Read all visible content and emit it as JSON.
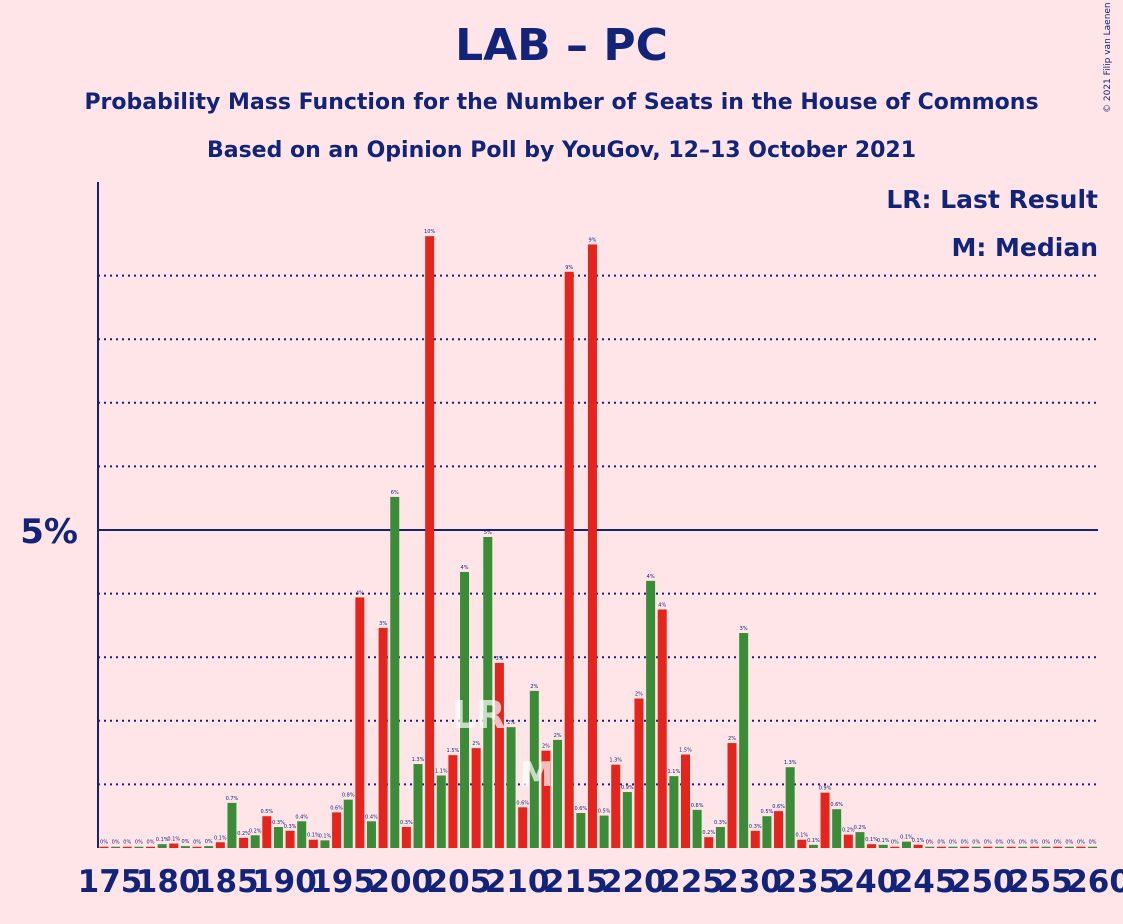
{
  "title": "LAB – PC",
  "subtitle1": "Probability Mass Function for the Number of Seats in the House of Commons",
  "subtitle2": "Based on an Opinion Poll by YouGov, 12–13 October 2021",
  "legend": {
    "last_result": "LR: Last Result",
    "median": "M: Median"
  },
  "copyright": "© 2021 Filip van Laenen",
  "colors": {
    "background": "#FFE4E8",
    "text": "#12247A",
    "red": "#E4251E",
    "green": "#3A8D36"
  },
  "chart_data": {
    "type": "bar",
    "ylabel_major": "5%",
    "ylim": [
      0,
      10.5
    ],
    "grid": "dotted lines every 1%, solid at 5%",
    "last_result_seat": 208,
    "median_seat": 212,
    "x_tick_labels": [
      "175",
      "180",
      "185",
      "190",
      "195",
      "200",
      "205",
      "210",
      "215",
      "220",
      "225",
      "230",
      "235",
      "240",
      "245",
      "250",
      "255",
      "260"
    ],
    "bars": [
      {
        "x": 175,
        "y": 0.02,
        "label": "0%"
      },
      {
        "x": 176,
        "y": 0.02,
        "label": "0%"
      },
      {
        "x": 177,
        "y": 0.02,
        "label": "0%"
      },
      {
        "x": 178,
        "y": 0.02,
        "label": "0%"
      },
      {
        "x": 179,
        "y": 0.02,
        "label": "0%"
      },
      {
        "x": 180,
        "y": 0.06,
        "label": "0.1%"
      },
      {
        "x": 181,
        "y": 0.07,
        "label": "0.1%"
      },
      {
        "x": 182,
        "y": 0.03,
        "label": "0%"
      },
      {
        "x": 183,
        "y": 0.02,
        "label": "0%"
      },
      {
        "x": 184,
        "y": 0.03,
        "label": "0%"
      },
      {
        "x": 185,
        "y": 0.09,
        "label": "0.1%"
      },
      {
        "x": 186,
        "y": 0.71,
        "label": "0.7%"
      },
      {
        "x": 187,
        "y": 0.16,
        "label": "0.2%"
      },
      {
        "x": 188,
        "y": 0.2,
        "label": "0.2%"
      },
      {
        "x": 189,
        "y": 0.5,
        "label": "0.5%"
      },
      {
        "x": 190,
        "y": 0.33,
        "label": "0.3%"
      },
      {
        "x": 191,
        "y": 0.27,
        "label": "0.3%"
      },
      {
        "x": 192,
        "y": 0.42,
        "label": "0.4%"
      },
      {
        "x": 193,
        "y": 0.13,
        "label": "0.1%"
      },
      {
        "x": 194,
        "y": 0.12,
        "label": "0.1%"
      },
      {
        "x": 195,
        "y": 0.56,
        "label": "0.6%"
      },
      {
        "x": 196,
        "y": 0.76,
        "label": "0.8%"
      },
      {
        "x": 197,
        "y": 3.94,
        "label": "4%"
      },
      {
        "x": 198,
        "y": 0.42,
        "label": "0.4%"
      },
      {
        "x": 199,
        "y": 3.46,
        "label": "3%"
      },
      {
        "x": 200,
        "y": 5.52,
        "label": "6%"
      },
      {
        "x": 201,
        "y": 0.33,
        "label": "0.3%"
      },
      {
        "x": 202,
        "y": 1.32,
        "label": "1.3%"
      },
      {
        "x": 203,
        "y": 9.62,
        "label": "10%"
      },
      {
        "x": 204,
        "y": 1.14,
        "label": "1.1%"
      },
      {
        "x": 205,
        "y": 1.46,
        "label": "1.5%"
      },
      {
        "x": 206,
        "y": 4.34,
        "label": "4%"
      },
      {
        "x": 207,
        "y": 1.57,
        "label": "2%"
      },
      {
        "x": 208,
        "y": 4.89,
        "label": "5%"
      },
      {
        "x": 209,
        "y": 2.91,
        "label": "3%"
      },
      {
        "x": 210,
        "y": 1.9,
        "label": "2%"
      },
      {
        "x": 211,
        "y": 0.64,
        "label": "0.6%"
      },
      {
        "x": 212,
        "y": 2.47,
        "label": "2%"
      },
      {
        "x": 213,
        "y": 1.53,
        "label": "2%"
      },
      {
        "x": 214,
        "y": 1.7,
        "label": "2%"
      },
      {
        "x": 215,
        "y": 9.06,
        "label": "9%"
      },
      {
        "x": 216,
        "y": 0.55,
        "label": "0.6%"
      },
      {
        "x": 217,
        "y": 9.49,
        "label": "9%"
      },
      {
        "x": 218,
        "y": 0.51,
        "label": "0.5%"
      },
      {
        "x": 219,
        "y": 1.31,
        "label": "1.3%"
      },
      {
        "x": 220,
        "y": 0.88,
        "label": "0.9%"
      },
      {
        "x": 221,
        "y": 2.35,
        "label": "2%"
      },
      {
        "x": 222,
        "y": 4.2,
        "label": "4%"
      },
      {
        "x": 223,
        "y": 3.75,
        "label": "4%"
      },
      {
        "x": 224,
        "y": 1.13,
        "label": "1.1%"
      },
      {
        "x": 225,
        "y": 1.47,
        "label": "1.5%"
      },
      {
        "x": 226,
        "y": 0.6,
        "label": "0.6%"
      },
      {
        "x": 227,
        "y": 0.17,
        "label": "0.2%"
      },
      {
        "x": 228,
        "y": 0.33,
        "label": "0.3%"
      },
      {
        "x": 229,
        "y": 1.65,
        "label": "2%"
      },
      {
        "x": 230,
        "y": 3.38,
        "label": "3%"
      },
      {
        "x": 231,
        "y": 0.27,
        "label": "0.3%"
      },
      {
        "x": 232,
        "y": 0.5,
        "label": "0.5%"
      },
      {
        "x": 233,
        "y": 0.58,
        "label": "0.6%"
      },
      {
        "x": 234,
        "y": 1.27,
        "label": "1.3%"
      },
      {
        "x": 235,
        "y": 0.13,
        "label": "0.1%"
      },
      {
        "x": 236,
        "y": 0.05,
        "label": "0.1%"
      },
      {
        "x": 237,
        "y": 0.87,
        "label": "0.9%"
      },
      {
        "x": 238,
        "y": 0.61,
        "label": "0.6%"
      },
      {
        "x": 239,
        "y": 0.21,
        "label": "0.2%"
      },
      {
        "x": 240,
        "y": 0.25,
        "label": "0.2%"
      },
      {
        "x": 241,
        "y": 0.06,
        "label": "0.1%"
      },
      {
        "x": 242,
        "y": 0.05,
        "label": "0.1%"
      },
      {
        "x": 243,
        "y": 0.02,
        "label": "0%"
      },
      {
        "x": 244,
        "y": 0.1,
        "label": "0.1%"
      },
      {
        "x": 245,
        "y": 0.05,
        "label": "0.1%"
      },
      {
        "x": 246,
        "y": 0.02,
        "label": "0%"
      },
      {
        "x": 247,
        "y": 0.02,
        "label": "0%"
      },
      {
        "x": 248,
        "y": 0.02,
        "label": "0%"
      },
      {
        "x": 249,
        "y": 0.02,
        "label": "0%"
      },
      {
        "x": 250,
        "y": 0.02,
        "label": "0%"
      },
      {
        "x": 251,
        "y": 0.02,
        "label": "0%"
      },
      {
        "x": 252,
        "y": 0.02,
        "label": "0%"
      },
      {
        "x": 253,
        "y": 0.02,
        "label": "0%"
      },
      {
        "x": 254,
        "y": 0.02,
        "label": "0%"
      },
      {
        "x": 255,
        "y": 0.02,
        "label": "0%"
      },
      {
        "x": 256,
        "y": 0.02,
        "label": "0%"
      },
      {
        "x": 257,
        "y": 0.02,
        "label": "0%"
      },
      {
        "x": 258,
        "y": 0.02,
        "label": "0%"
      },
      {
        "x": 259,
        "y": 0.02,
        "label": "0%"
      },
      {
        "x": 260,
        "y": 0.02,
        "label": "0%"
      }
    ]
  }
}
